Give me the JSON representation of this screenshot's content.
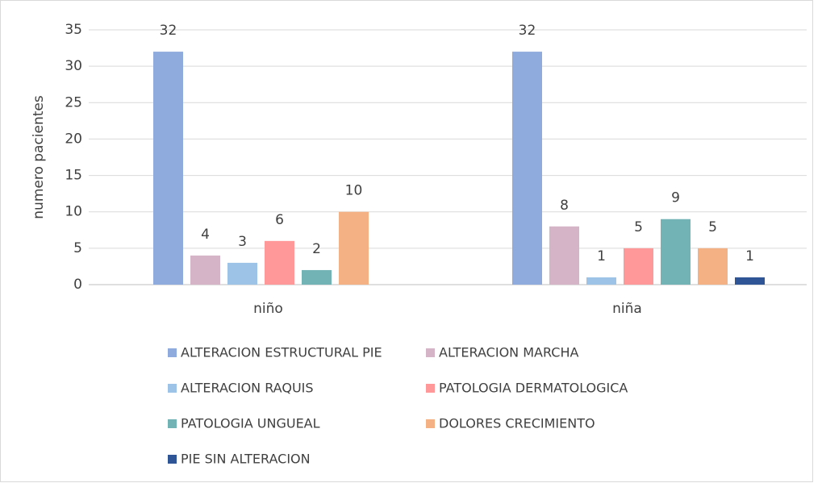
{
  "chart_data": {
    "type": "bar",
    "y_label": "numero pacientes",
    "categories": [
      "niño",
      "niña"
    ],
    "series": [
      {
        "name": "ALTERACION ESTRUCTURAL PIE",
        "color": "#8faadc",
        "values": [
          32,
          32
        ]
      },
      {
        "name": "ALTERACION MARCHA",
        "color": "#d6b4c8",
        "values": [
          4,
          8
        ]
      },
      {
        "name": "ALTERACION RAQUIS",
        "color": "#9dc3e6",
        "values": [
          3,
          1
        ]
      },
      {
        "name": "PATOLOGIA DERMATOLOGICA",
        "color": "#ff9999",
        "values": [
          6,
          5
        ]
      },
      {
        "name": "PATOLOGIA UNGUEAL",
        "color": "#72b4b5",
        "values": [
          2,
          9
        ]
      },
      {
        "name": "DOLORES CRECIMIENTO",
        "color": "#f4b183",
        "values": [
          10,
          5
        ]
      },
      {
        "name": "PIE SIN ALTERACION",
        "color": "#2f5597",
        "values": [
          null,
          1
        ]
      }
    ],
    "ylim": [
      0,
      35
    ],
    "yticks": [
      0,
      5,
      10,
      15,
      20,
      25,
      30,
      35
    ],
    "grid": true,
    "legend": "bottom"
  }
}
